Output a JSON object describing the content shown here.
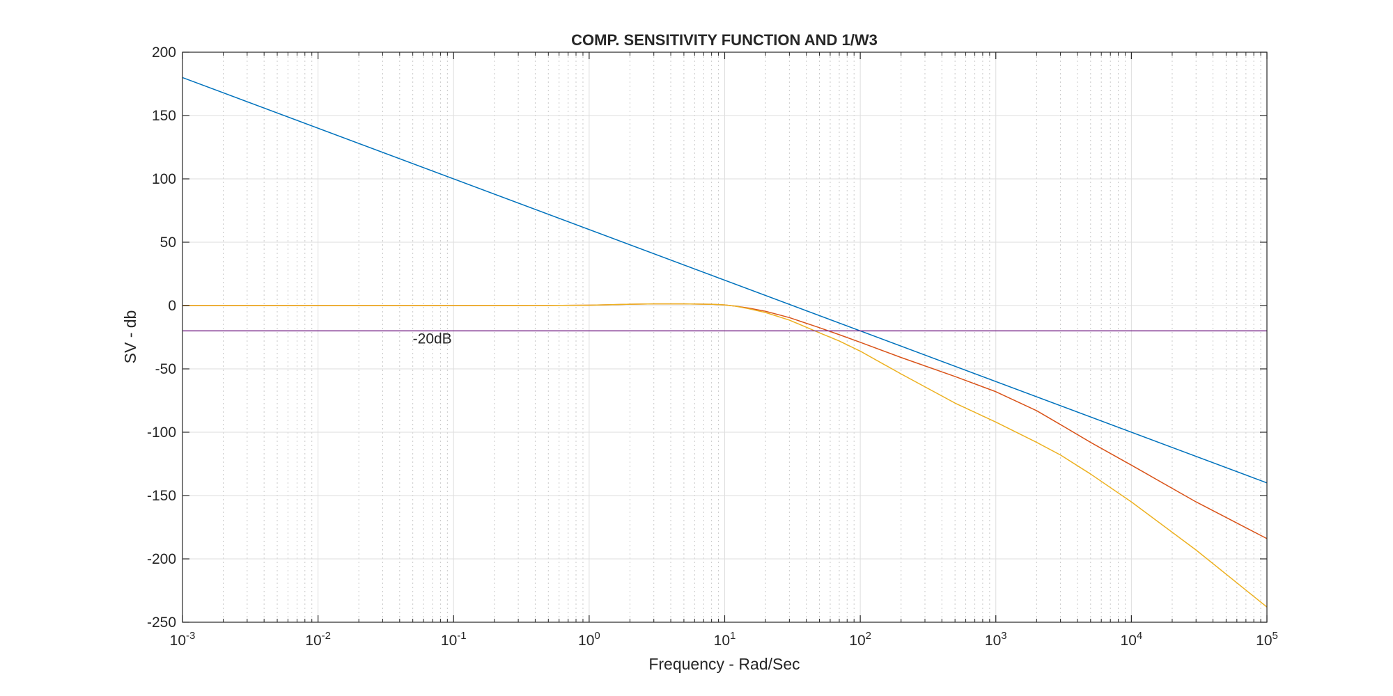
{
  "chart_data": {
    "type": "line",
    "title": "COMP. SENSITIVITY FUNCTION AND 1/W3",
    "xlabel": "Frequency - Rad/Sec",
    "ylabel": "SV - db",
    "xscale": "log",
    "xlim": [
      0.001,
      100000
    ],
    "ylim": [
      -250,
      200
    ],
    "grid": true,
    "minor_grid_x": true,
    "x_ticks": [
      {
        "base": "10",
        "exp": "-3"
      },
      {
        "base": "10",
        "exp": "-2"
      },
      {
        "base": "10",
        "exp": "-1"
      },
      {
        "base": "10",
        "exp": "0"
      },
      {
        "base": "10",
        "exp": "1"
      },
      {
        "base": "10",
        "exp": "2"
      },
      {
        "base": "10",
        "exp": "3"
      },
      {
        "base": "10",
        "exp": "4"
      },
      {
        "base": "10",
        "exp": "5"
      }
    ],
    "y_ticks": [
      "200",
      "150",
      "100",
      "50",
      "0",
      "-50",
      "-100",
      "-150",
      "-200",
      "-250"
    ],
    "annotations": [
      {
        "text": "-20dB",
        "x": 0.05,
        "y": -30
      }
    ],
    "series": [
      {
        "color": "#0072BD",
        "x": [
          0.001,
          100000
        ],
        "y": [
          180,
          -140
        ]
      },
      {
        "color": "#D95319",
        "x": [
          0.001,
          0.01,
          0.1,
          0.5,
          1,
          2,
          3,
          5,
          8,
          10,
          12,
          15,
          20,
          30,
          50,
          70,
          100,
          200,
          500,
          1000,
          2000,
          3000,
          5000,
          10000,
          30000,
          100000
        ],
        "y": [
          0,
          0,
          0,
          0.1,
          0.3,
          1.0,
          1.3,
          1.3,
          1.0,
          0.5,
          -0.5,
          -2,
          -4.5,
          -9.5,
          -17.5,
          -23,
          -29,
          -41,
          -56,
          -68,
          -83,
          -94,
          -108,
          -126,
          -155,
          -184
        ]
      },
      {
        "color": "#EDB120",
        "x": [
          0.001,
          0.01,
          0.1,
          0.5,
          1,
          2,
          3,
          5,
          8,
          10,
          12,
          15,
          20,
          30,
          50,
          70,
          100,
          200,
          500,
          1000,
          2000,
          3000,
          5000,
          10000,
          30000,
          100000
        ],
        "y": [
          0,
          0,
          0,
          0.1,
          0.3,
          1.0,
          1.3,
          1.3,
          1.0,
          0.5,
          -0.5,
          -2.5,
          -5.5,
          -11.5,
          -21.5,
          -28,
          -36,
          -54,
          -77,
          -92,
          -108,
          -118,
          -133,
          -155,
          -193,
          -238
        ]
      },
      {
        "color": "#7E2F8E",
        "x": [
          0.001,
          100000
        ],
        "y": [
          -20,
          -20
        ]
      }
    ]
  }
}
